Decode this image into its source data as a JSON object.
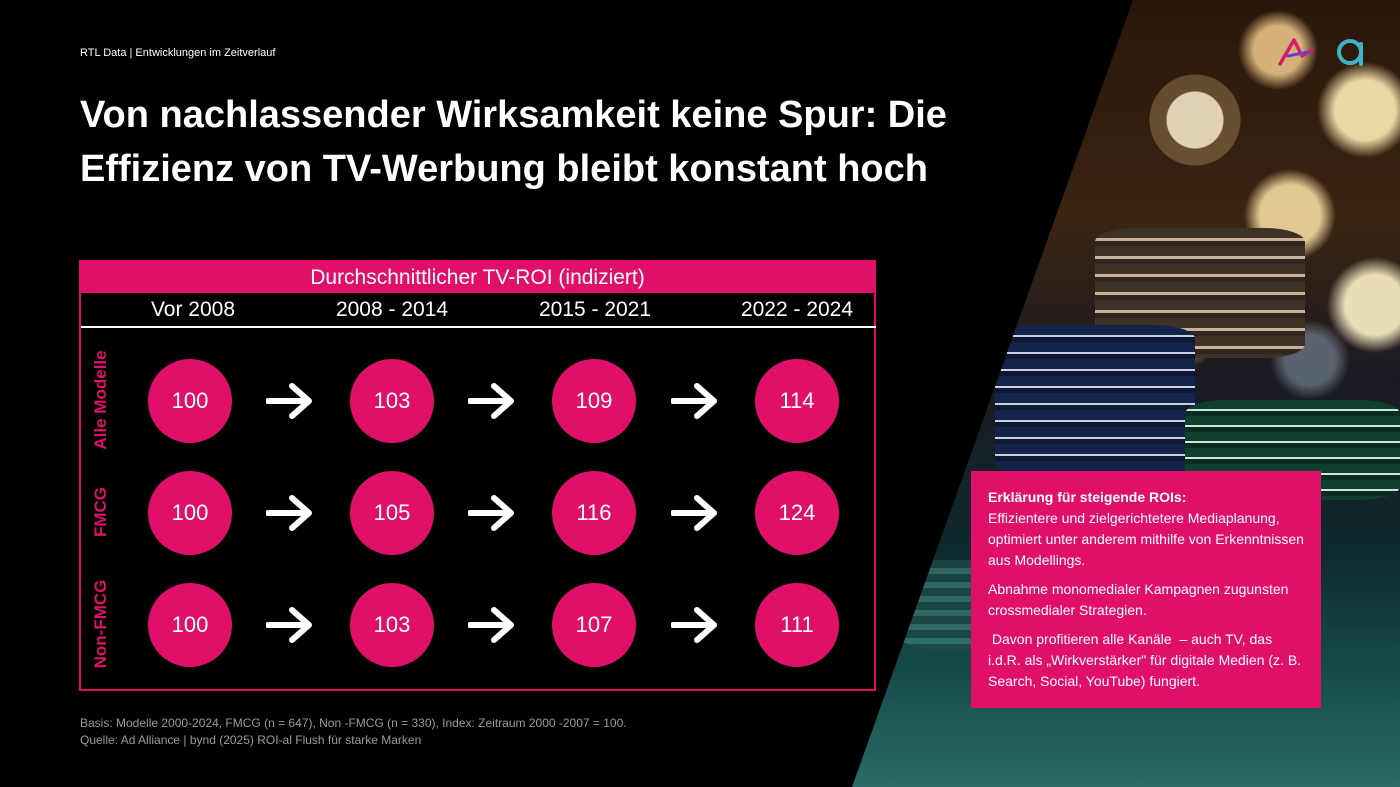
{
  "kicker": "RTL Data | Entwicklungen im Zeitverlauf",
  "headline": {
    "line1": "Von nachlassender Wirksamkeit keine Spur: Die",
    "line2": "Effizienz von TV-Werbung bleibt konstant hoch"
  },
  "table": {
    "title": "Durchschnittlicher TV-ROI (indiziert)",
    "columns": [
      "Vor 2008",
      "2008 - 2014",
      "2015 - 2021",
      "2022 - 2024"
    ],
    "rows": [
      {
        "label": "Alle Modelle",
        "values": [
          "100",
          "103",
          "109",
          "114"
        ]
      },
      {
        "label": "FMCG",
        "values": [
          "100",
          "105",
          "116",
          "124"
        ]
      },
      {
        "label": "Non-FMCG",
        "values": [
          "100",
          "103",
          "107",
          "111"
        ]
      }
    ]
  },
  "footnote": {
    "line1": "Basis: Modelle 2000-2024, FMCG (n = 647), Non -FMCG (n = 330), Index: Zeitraum 2000 -2007 = 100.",
    "line2": "Quelle: Ad Alliance | bynd (2025) ROI-al  Flush für starke Marken"
  },
  "explain": {
    "title": "Erklärung für steigende ROIs:",
    "p1": "Effizientere und zielgerichtetere Mediaplanung, optimiert unter anderem mithilfe von Erkenntnissen aus Modellings.",
    "p2": "Abnahme monomedialer Kampagnen zugunsten crossmedialer Strategien.",
    "p3": " Davon profitieren alle Kanäle  – auch TV, das i.d.R. als „Wirkverstärker\" für digitale Medien (z. B. Search, Social, YouTube) fungiert."
  },
  "colors": {
    "accent": "#e0106a",
    "background": "#000000",
    "logo_pink": "#d81b6a",
    "logo_teal": "#3fb4c8"
  },
  "icons": {
    "logo": "ad-alliance-logo",
    "arrow": "arrow-right-icon"
  }
}
